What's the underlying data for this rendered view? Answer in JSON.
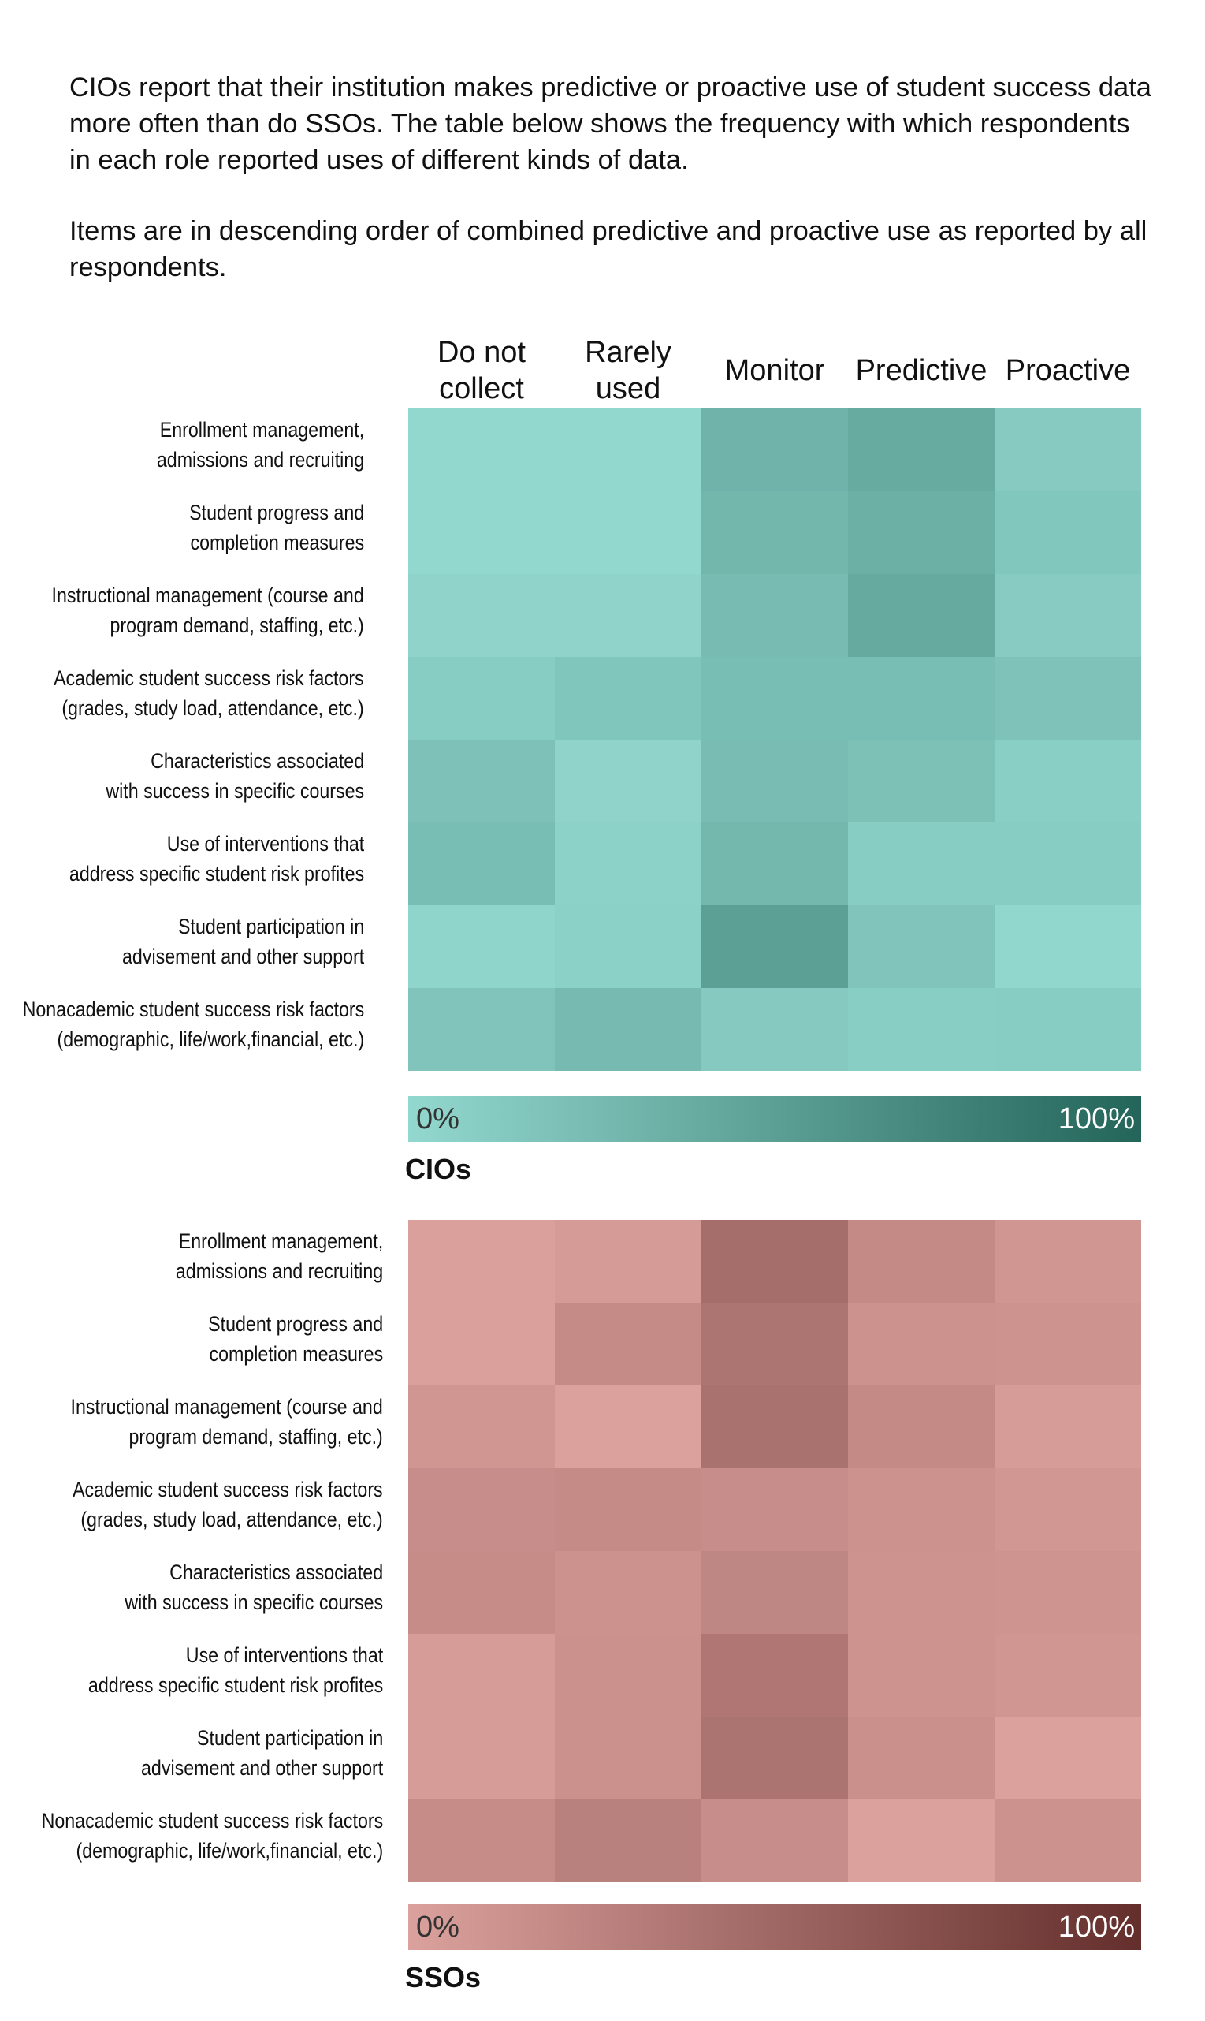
{
  "intro": {
    "p1": "CIOs report that their institution makes predictive or proactive use of student success data more often than do SSOs. The table below shows the frequency with which respondents in each role reported uses of different kinds of data.",
    "p2": "Items are in descending order of combined predictive and proactive use as reported by all respondents."
  },
  "chart_data": [
    {
      "type": "heatmap",
      "title": "CIOs",
      "columns": [
        "Do not collect",
        "Rarely used",
        "Monitor",
        "Predictive",
        "Proactive"
      ],
      "column_lines": [
        [
          "Do not",
          "collect"
        ],
        [
          "Rarely",
          "used"
        ],
        [
          "Monitor"
        ],
        [
          "Predictive"
        ],
        [
          "Proactive"
        ]
      ],
      "rows": [
        [
          "Enrollment management,",
          "admissions and recruiting"
        ],
        [
          "Student progress and",
          "completion measures"
        ],
        [
          "Instructional management (course and",
          "program demand, staffing, etc.)"
        ],
        [
          "Academic student success risk factors",
          "(grades, study load, attendance, etc.)"
        ],
        [
          "Characteristics associated",
          "with success in specific courses"
        ],
        [
          "Use of interventions that",
          "address specific student risk profites"
        ],
        [
          "Student participation in",
          "advisement and other support"
        ],
        [
          "Nonacademic student success risk factors",
          "(demographic, life/work,financial, etc.)"
        ]
      ],
      "values": [
        [
          0,
          0,
          32,
          40,
          12
        ],
        [
          0,
          0,
          30,
          36,
          15
        ],
        [
          4,
          4,
          25,
          41,
          11
        ],
        [
          10,
          16,
          23,
          23,
          19
        ],
        [
          20,
          4,
          24,
          21,
          8
        ],
        [
          23,
          5,
          29,
          10,
          10
        ],
        [
          3,
          6,
          50,
          17,
          1
        ],
        [
          17,
          26,
          13,
          9,
          10
        ]
      ],
      "scale_min": 0,
      "scale_max": 100,
      "color_low": "#93d8cf",
      "color_high": "#24655a",
      "legend_min_label": "0%",
      "legend_max_label": "100%"
    },
    {
      "type": "heatmap",
      "title": "SSOs",
      "columns": [
        "Do not collect",
        "Rarely used",
        "Monitor",
        "Predictive",
        "Proactive"
      ],
      "rows": [
        [
          "Enrollment management,",
          "admissions and recruiting"
        ],
        [
          "Student progress and",
          "completion measures"
        ],
        [
          "Instructional management (course and",
          "program demand, staffing, etc.)"
        ],
        [
          "Academic student success risk factors",
          "(grades, study load, attendance, etc.)"
        ],
        [
          "Characteristics associated",
          "with success in specific courses"
        ],
        [
          "Use of interventions that",
          "address specific student risk profites"
        ],
        [
          "Student participation in",
          "advisement and other support"
        ],
        [
          "Nonacademic student success risk factors",
          "(demographic, life/work,financial, etc.)"
        ]
      ],
      "values": [
        [
          1,
          5,
          44,
          20,
          10
        ],
        [
          1,
          19,
          38,
          13,
          12
        ],
        [
          10,
          0,
          41,
          20,
          4
        ],
        [
          17,
          19,
          17,
          13,
          9
        ],
        [
          18,
          13,
          23,
          12,
          11
        ],
        [
          4,
          14,
          37,
          12,
          10
        ],
        [
          4,
          14,
          39,
          15,
          0
        ],
        [
          18,
          28,
          17,
          0,
          13
        ]
      ],
      "scale_min": 0,
      "scale_max": 100,
      "color_low": "#dba19d",
      "color_high": "#632e2b",
      "legend_min_label": "0%",
      "legend_max_label": "100%"
    }
  ]
}
